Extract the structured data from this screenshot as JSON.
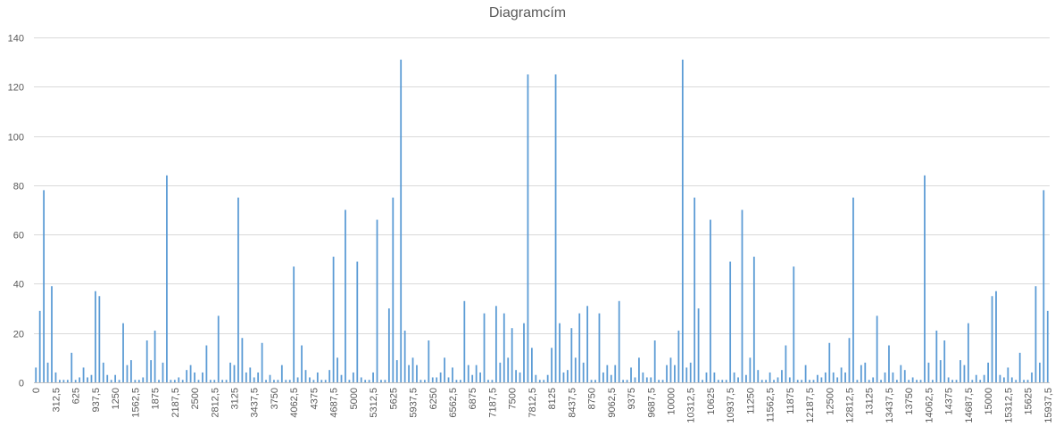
{
  "chart_data": {
    "type": "bar",
    "title": "Diagramcím",
    "xlabel": "",
    "ylabel": "",
    "ylim": [
      0,
      140
    ],
    "yticks": [
      0,
      20,
      40,
      60,
      80,
      100,
      120,
      140
    ],
    "grid": true,
    "legend": "none",
    "x_start": 0,
    "x_step": 62.5,
    "label_every": 5,
    "tick_label_format": "hu-decimal-comma",
    "series": [
      {
        "color": "#5b9bd5",
        "values": [
          6,
          29,
          78,
          8,
          39,
          4,
          1,
          1,
          1,
          12,
          1,
          2,
          6,
          2,
          3,
          37,
          35,
          8,
          3,
          1,
          3,
          1,
          24,
          7,
          9,
          1,
          1,
          2,
          17,
          9,
          21,
          1,
          8,
          84,
          1,
          1,
          2,
          1,
          5,
          7,
          4,
          1,
          4,
          15,
          1,
          1,
          27,
          1,
          1,
          8,
          7,
          75,
          18,
          4,
          6,
          2,
          4,
          16,
          1,
          3,
          1,
          1,
          7,
          1,
          1,
          47,
          2,
          15,
          5,
          2,
          1,
          4,
          1,
          1,
          5,
          51,
          10,
          3,
          70,
          1,
          4,
          49,
          2,
          1,
          1,
          4,
          66,
          1,
          1,
          30,
          75,
          9,
          131,
          21,
          7,
          10,
          7,
          1,
          1,
          17,
          2,
          2,
          4,
          10,
          2,
          6,
          1,
          1,
          33,
          7,
          3,
          7,
          4,
          28,
          1,
          1,
          31,
          8,
          28,
          10,
          22,
          5,
          4,
          24,
          125,
          14,
          3,
          1,
          1,
          3,
          14,
          125,
          24,
          4,
          5,
          22,
          10,
          28,
          8,
          31,
          1,
          1,
          28,
          4,
          7,
          3,
          7,
          33,
          1,
          1,
          6,
          2,
          10,
          4,
          2,
          2,
          17,
          1,
          1,
          7,
          10,
          7,
          21,
          131,
          6,
          8,
          75,
          30,
          1,
          4,
          66,
          4,
          1,
          1,
          1,
          49,
          4,
          2,
          70,
          3,
          10,
          51,
          5,
          1,
          1,
          4,
          1,
          2,
          5,
          15,
          2,
          47,
          1,
          1,
          7,
          1,
          1,
          3,
          2,
          4,
          16,
          4,
          2,
          6,
          4,
          18,
          75,
          1,
          7,
          8,
          1,
          2,
          27,
          1,
          4,
          15,
          4,
          1,
          7,
          5,
          1,
          2,
          1,
          1,
          84,
          8,
          1,
          21,
          9,
          17,
          2,
          1,
          1,
          9,
          7,
          24,
          1,
          3,
          1,
          3,
          8,
          35,
          37,
          3,
          2,
          6,
          2,
          1,
          12,
          1,
          1,
          4,
          39,
          8,
          78,
          29
        ]
      }
    ]
  }
}
